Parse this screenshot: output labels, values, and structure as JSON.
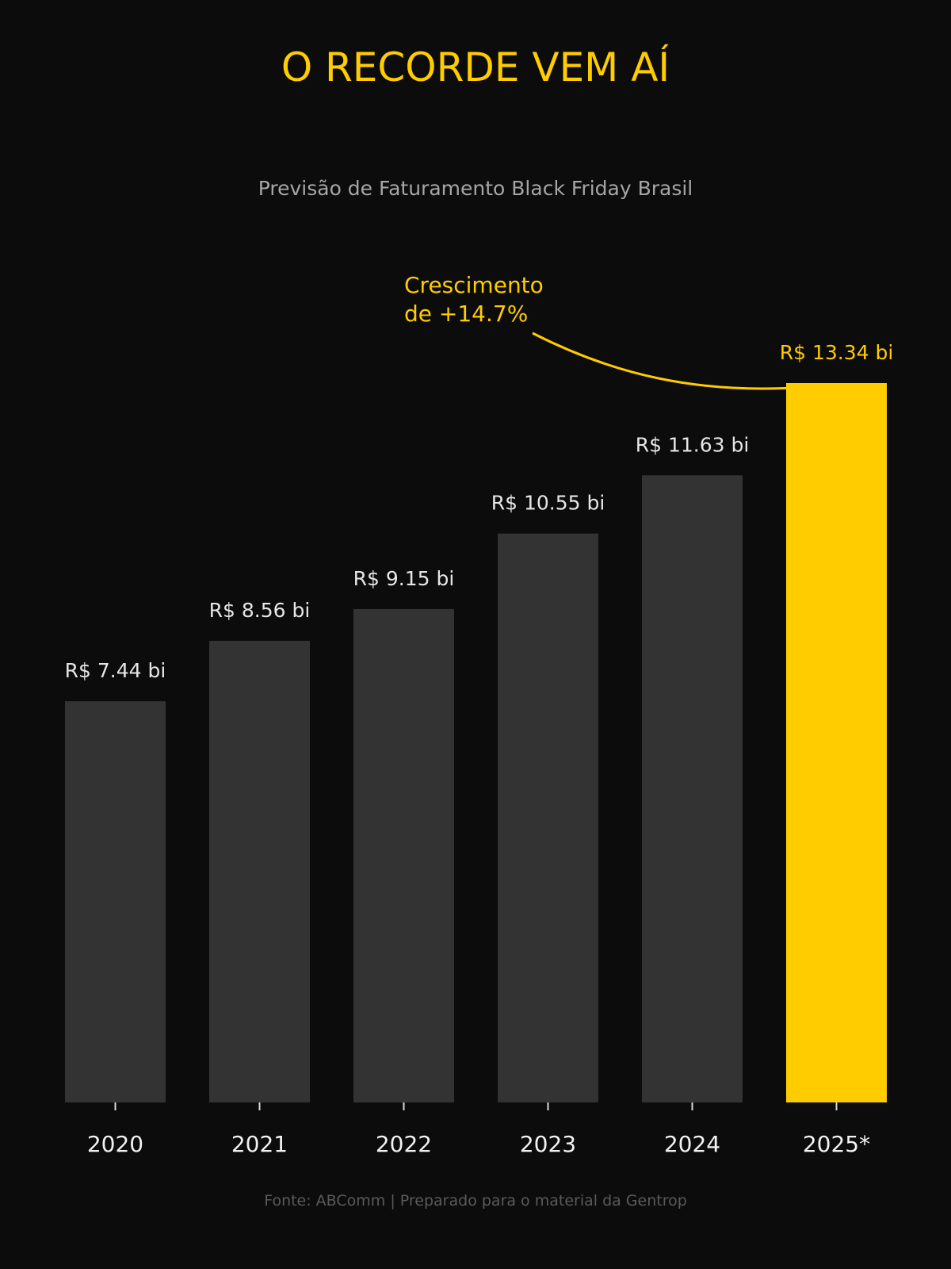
{
  "chart_data": {
    "type": "bar",
    "title": "O RECORDE VEM AÍ",
    "subtitle": "Previsão de Faturamento Black Friday Brasil",
    "categories": [
      "2020",
      "2021",
      "2022",
      "2023",
      "2024",
      "2025*"
    ],
    "values": [
      7.44,
      8.56,
      9.15,
      10.55,
      11.63,
      13.34
    ],
    "value_labels": [
      "R$ 7.44 bi",
      "R$ 8.56 bi",
      "R$ 9.15 bi",
      "R$ 10.55 bi",
      "R$ 11.63 bi",
      "R$ 13.34 bi"
    ],
    "ylim": [
      0,
      13.34
    ],
    "highlight_index": 5,
    "annotation": {
      "lines": [
        "Crescimento",
        "de +14.7%"
      ],
      "target_index": 5
    },
    "source": "Fonte: ABComm | Preparado para o material da Gentrop",
    "grid": false,
    "colors": {
      "background": "#0c0c0c",
      "bar": "#333333",
      "highlight": "#ffcc00",
      "title": "#ffcc00",
      "subtitle": "#a6a6a6",
      "value_label": "#e6e6e6",
      "tick_label": "#f2f2f2",
      "source": "#5a5a5a"
    }
  }
}
